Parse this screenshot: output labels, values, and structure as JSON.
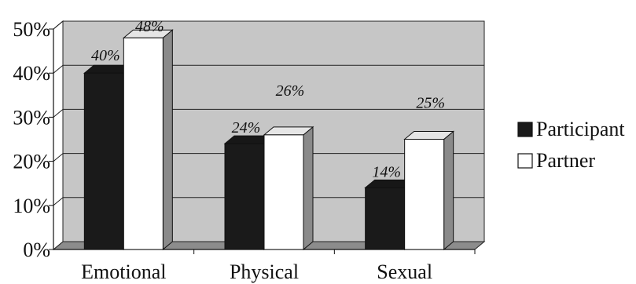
{
  "chart_data": {
    "type": "bar",
    "categories": [
      "Emotional",
      "Physical",
      "Sexual"
    ],
    "series": [
      {
        "name": "Participant",
        "values": [
          40,
          24,
          14
        ],
        "labels": [
          "40%",
          "24%",
          "14%"
        ],
        "color": "#1a1a1a"
      },
      {
        "name": "Partner",
        "values": [
          48,
          26,
          25
        ],
        "labels": [
          "48%",
          "26%",
          "25%"
        ],
        "color": "#ffffff"
      }
    ],
    "yticks": [
      "0%",
      "10%",
      "20%",
      "30%",
      "40%",
      "50%"
    ],
    "ylim": [
      0,
      50
    ],
    "title": "",
    "xlabel": "",
    "ylabel": "",
    "style": "3d",
    "wall_color": "#c6c6c6",
    "floor_color": "#8c8c8c",
    "grid": true,
    "legend": "right"
  }
}
